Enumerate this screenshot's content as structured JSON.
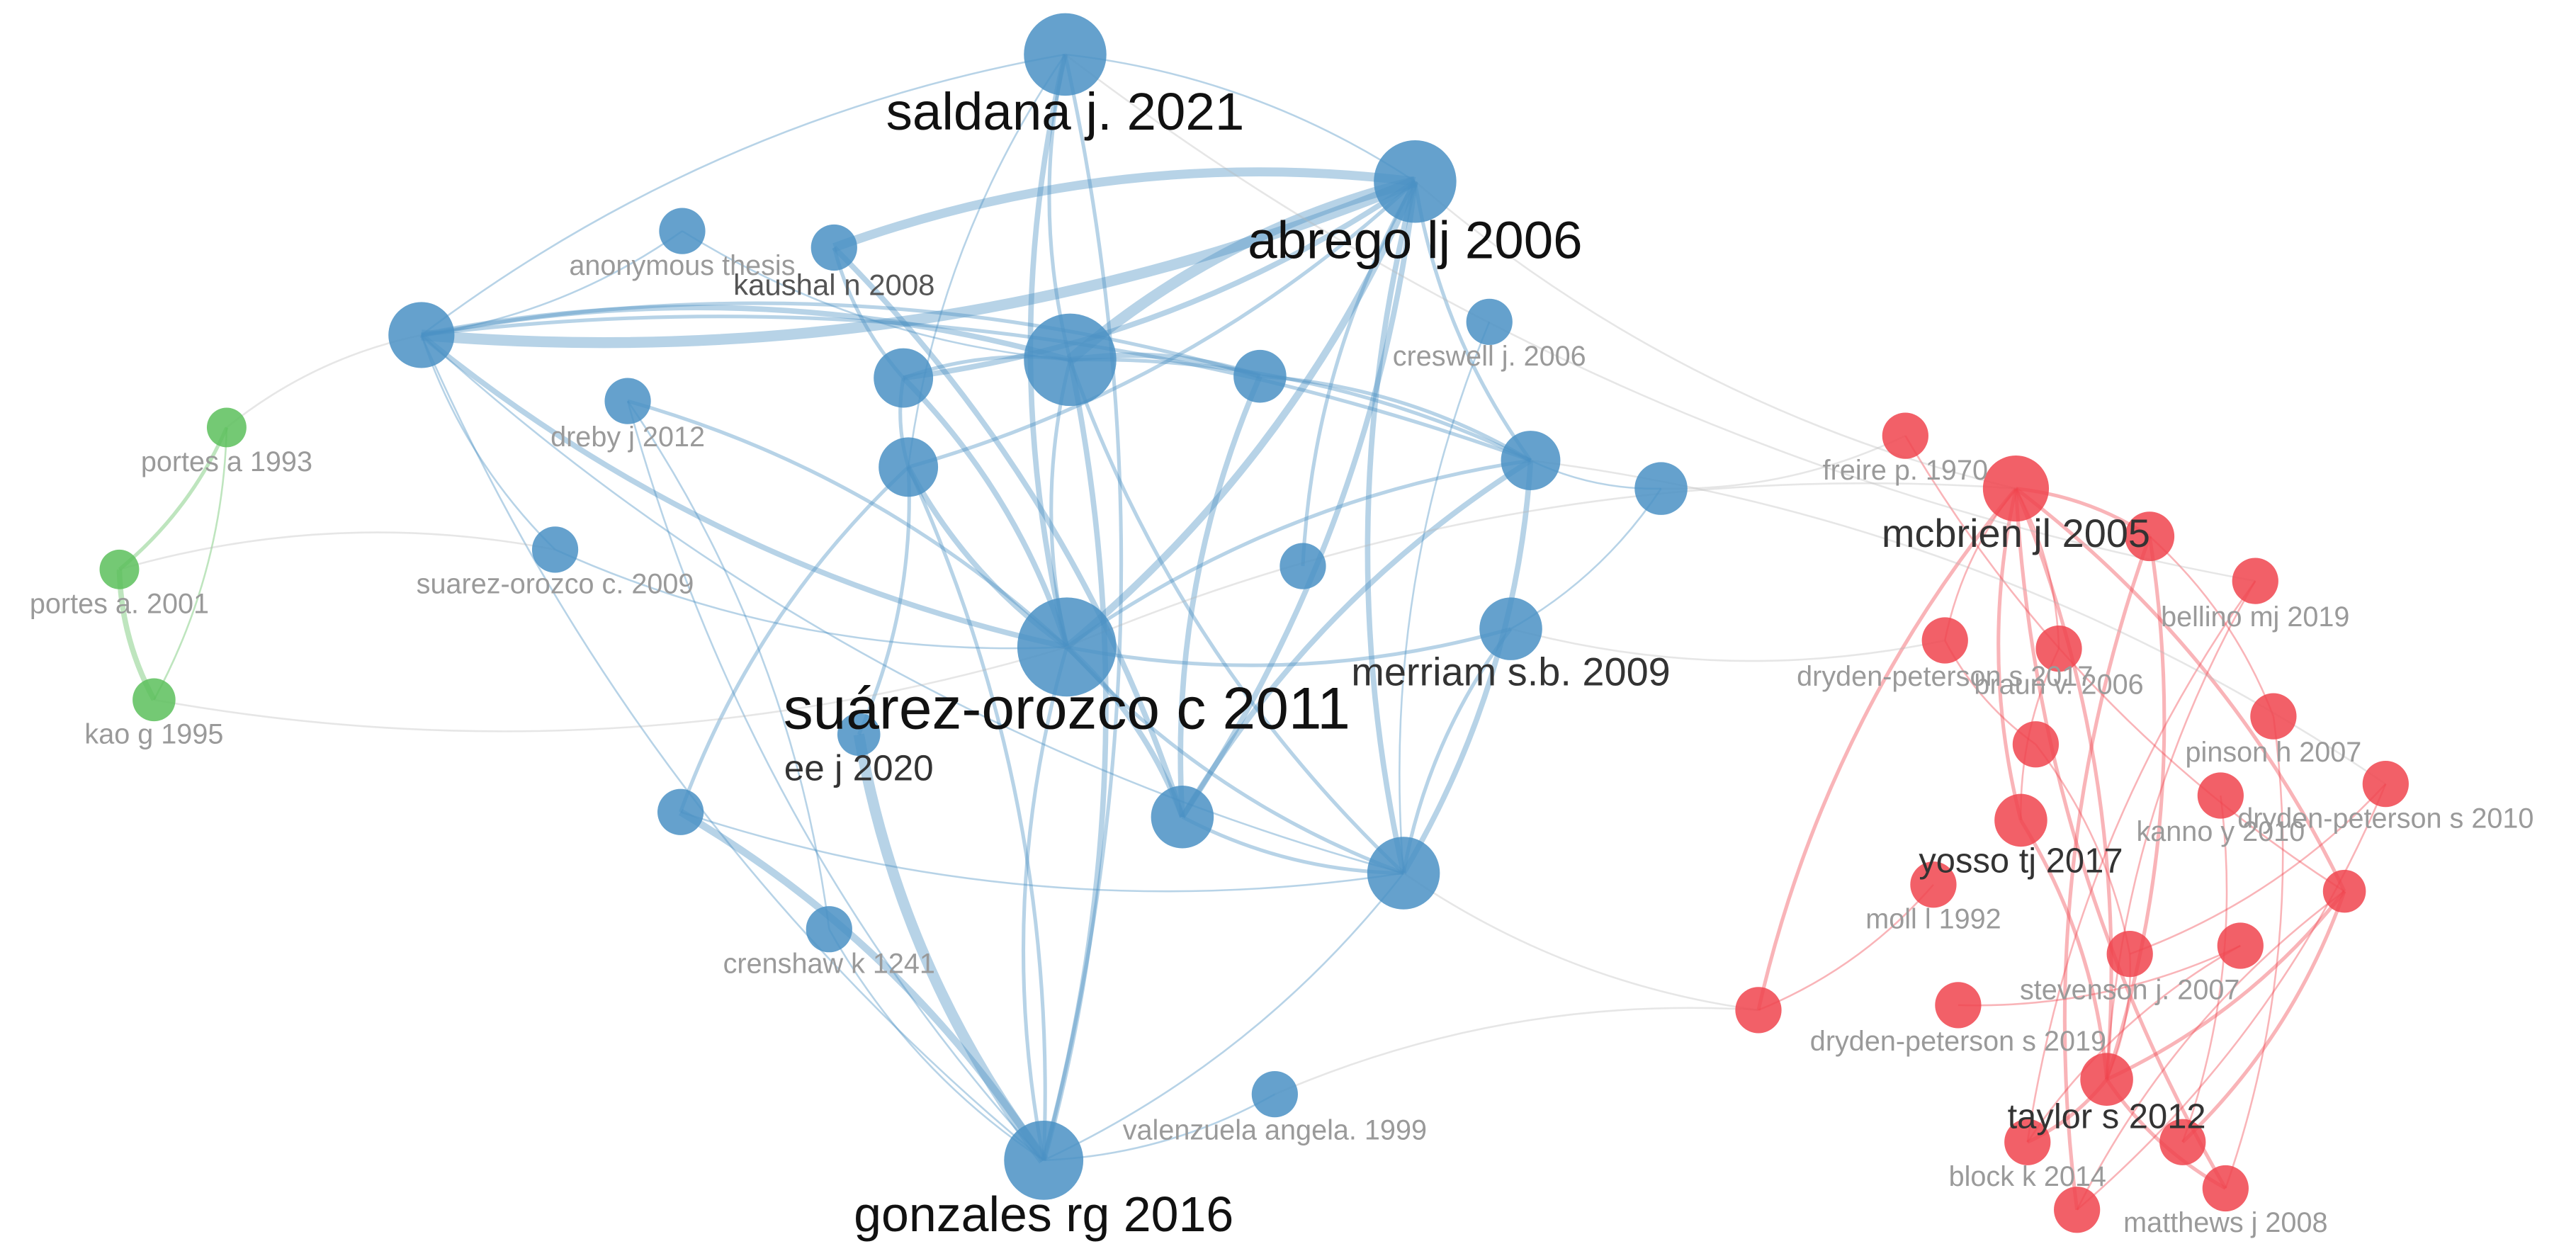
{
  "nodes": [
    {
      "label": "portes a 1993"
    },
    {
      "label": "portes a. 2001"
    },
    {
      "label": "kao g 1995"
    },
    {
      "label": "saldana j. 2021"
    },
    {
      "label": "abrego lj 2006"
    },
    {
      "label": "anonymous thesis"
    },
    {
      "label": "kaushal n 2008"
    },
    {
      "label": "creswell j. 2006"
    },
    {
      "label": "dreby j 2012"
    },
    {
      "label": "suarez-orozco c. 2009"
    },
    {
      "label": "merriam s.b. 2009"
    },
    {
      "label": "suárez-orozco c 2011"
    },
    {
      "label": "ee j 2020"
    },
    {
      "label": "crenshaw k 1241"
    },
    {
      "label": "valenzuela angela. 1999"
    },
    {
      "label": "gonzales rg 2016"
    },
    {
      "label": "freire p. 1970"
    },
    {
      "label": "mcbrien jl 2005"
    },
    {
      "label": "bellino mj 2019"
    },
    {
      "label": "dryden-peterson s 2017"
    },
    {
      "label": "braun v. 2006"
    },
    {
      "label": "pinson h 2007"
    },
    {
      "label": "dryden-peterson s 2010"
    },
    {
      "label": "kanno y 2010"
    },
    {
      "label": "yosso tj 2017"
    },
    {
      "label": "moll l 1992"
    },
    {
      "label": "stevenson j. 2007"
    },
    {
      "label": "dryden-peterson s 2019"
    },
    {
      "label": "taylor s 2012"
    },
    {
      "label": "block k 2014"
    },
    {
      "label": "matthews j 2008"
    }
  ]
}
